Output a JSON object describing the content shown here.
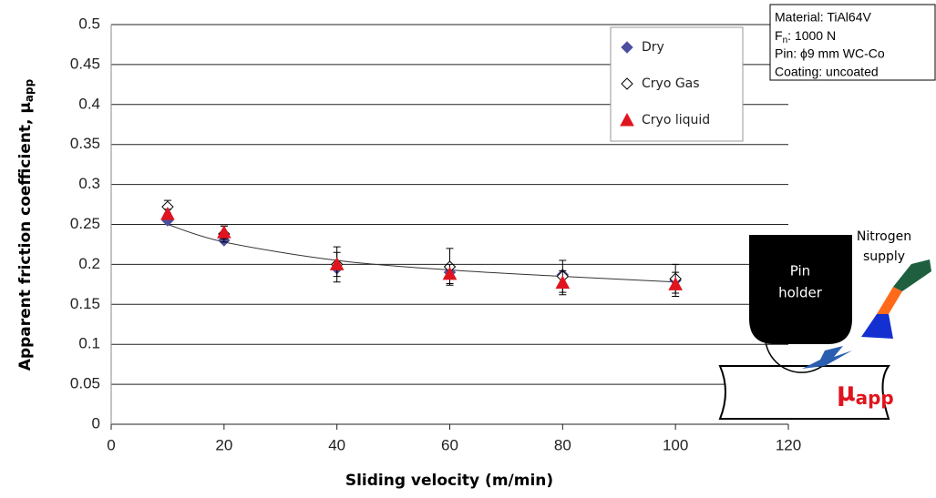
{
  "chart_data": {
    "type": "scatter",
    "y_label": {
      "main": "Apparent friction coefficient, μ",
      "sub": "app"
    },
    "x_label": "Sliding velocity (m/min)",
    "x": [
      10,
      20,
      40,
      60,
      80,
      100
    ],
    "series": [
      {
        "name": "Dry",
        "color": "#4b4f9e",
        "marker": "diamond",
        "values": [
          0.255,
          0.23,
          0.195,
          0.19,
          0.187,
          0.18
        ]
      },
      {
        "name": "Cryo Gas",
        "color": "#ffffff",
        "marker": "diamond",
        "values": [
          0.272,
          0.238,
          0.2,
          0.197,
          0.185,
          0.182
        ],
        "errors": [
          0.008,
          0.01,
          0.022,
          0.023,
          0.02,
          0.018
        ]
      },
      {
        "name": "Cryo liquid",
        "color": "#e0141e",
        "marker": "triangle",
        "values": [
          0.263,
          0.24,
          0.2,
          0.188,
          0.177,
          0.175
        ],
        "errors": [
          0.006,
          0.008,
          0.015,
          0.012,
          0.015,
          0.015
        ]
      }
    ],
    "trendline": {
      "x": [
        10,
        20,
        40,
        60,
        80,
        100
      ],
      "values": [
        0.25,
        0.228,
        0.205,
        0.193,
        0.185,
        0.178
      ]
    },
    "xlim": [
      0,
      120
    ],
    "xticks": [
      0,
      20,
      40,
      60,
      80,
      100,
      120
    ],
    "ylim": [
      0,
      0.5
    ],
    "yticks": [
      0,
      0.05,
      0.1,
      0.15,
      0.2,
      0.25,
      0.3,
      0.35,
      0.4,
      0.45,
      0.5
    ],
    "grid": true,
    "info_box": {
      "material": "Material: TiAl64V",
      "force": {
        "main": "F",
        "sub": "n",
        "rest": ": 1000 N"
      },
      "pin": "Pin: ϕ9 mm WC-Co",
      "coating": "Coating: uncoated"
    },
    "diagram": {
      "pin_holder": [
        "Pin",
        "holder"
      ],
      "supply": [
        "Nitrogen",
        "supply"
      ],
      "mu": {
        "main": "μ",
        "sub": "app"
      }
    }
  }
}
